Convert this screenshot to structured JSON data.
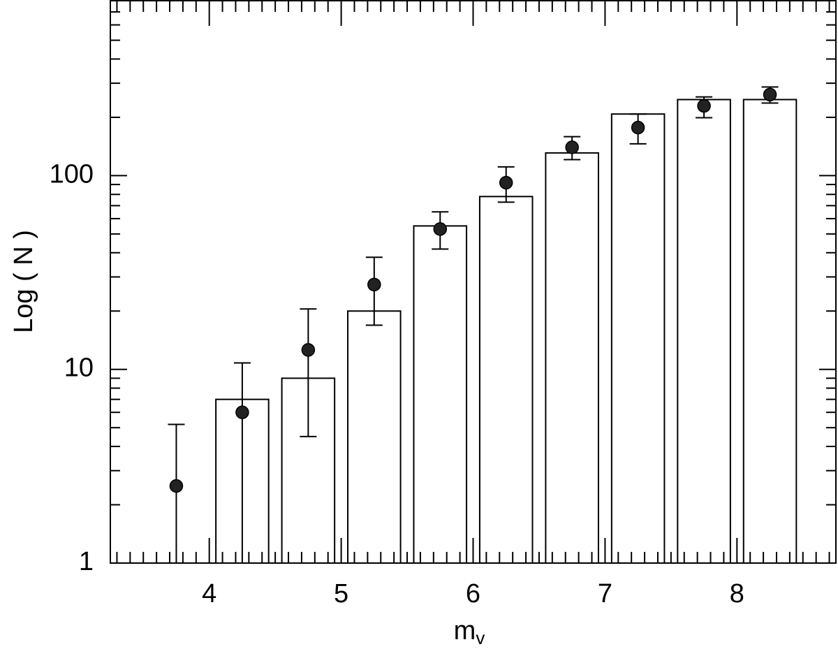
{
  "chart_data": {
    "type": "bar-errorbar",
    "ylabel": "Log ( N )",
    "xlabel": "m",
    "xlabel_sub": "v",
    "xlim": [
      3.25,
      8.75
    ],
    "xticks": [
      4,
      5,
      6,
      7,
      8
    ],
    "xminor": [
      3.3,
      3.4,
      3.5,
      3.6,
      3.7,
      3.8,
      3.9,
      4.1,
      4.2,
      4.3,
      4.4,
      4.5,
      4.6,
      4.7,
      4.8,
      4.9,
      5.1,
      5.2,
      5.3,
      5.4,
      5.5,
      5.6,
      5.7,
      5.8,
      5.9,
      6.1,
      6.2,
      6.3,
      6.4,
      6.5,
      6.6,
      6.7,
      6.8,
      6.9,
      7.1,
      7.2,
      7.3,
      7.4,
      7.5,
      7.6,
      7.7,
      7.8,
      7.9,
      8.1,
      8.2,
      8.3,
      8.4,
      8.5,
      8.6,
      8.7
    ],
    "ylim": [
      1,
      800
    ],
    "log_y": true,
    "yticks": [
      1,
      10,
      100
    ],
    "yminor": [
      2,
      3,
      4,
      5,
      6,
      7,
      8,
      9,
      20,
      30,
      40,
      50,
      60,
      70,
      80,
      90,
      200,
      300,
      400,
      500,
      600,
      700,
      800
    ],
    "bars": {
      "color": "#ffffff",
      "edge": "#000000",
      "x": [
        4.25,
        4.75,
        5.25,
        5.75,
        6.25,
        6.75,
        7.25,
        7.75,
        8.25
      ],
      "values": [
        7,
        9,
        20,
        55,
        78,
        131,
        208,
        247,
        247
      ]
    },
    "points": {
      "color": "#222222",
      "x": [
        3.75,
        4.25,
        4.75,
        5.25,
        5.75,
        6.25,
        6.75,
        7.25,
        7.75,
        8.25
      ],
      "values": [
        2.5,
        6,
        12.6,
        27.4,
        53,
        92,
        140,
        177,
        229,
        262
      ],
      "lower": [
        1,
        1,
        4.5,
        16.9,
        41.8,
        73,
        121,
        146,
        199,
        237
      ],
      "upper": [
        5.2,
        10.8,
        20.5,
        37.9,
        65,
        111,
        159,
        208,
        255,
        287
      ]
    }
  }
}
